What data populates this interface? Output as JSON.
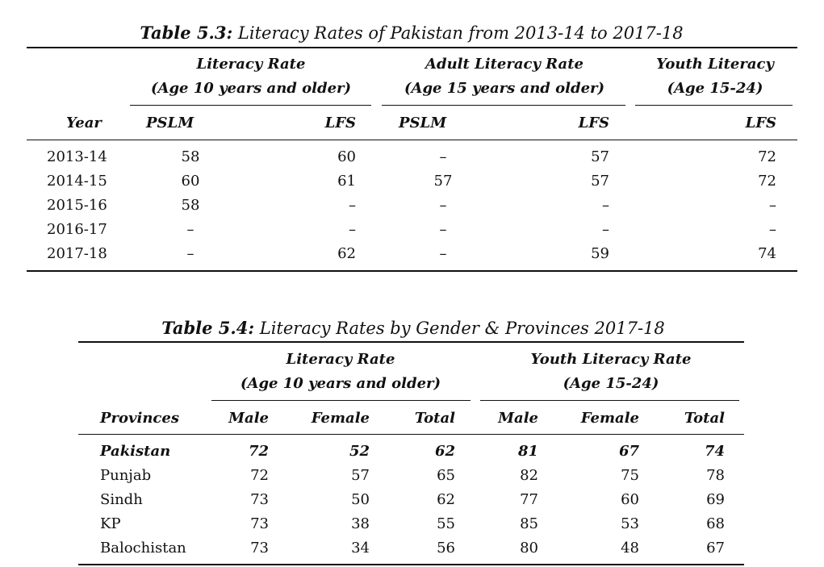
{
  "table1": {
    "caption_label": "Table 5.3:",
    "caption_text": "Literacy Rates of Pakistan from 2013-14 to 2017-18",
    "group1_line1": "Literacy Rate",
    "group1_line2": "(Age 10 years and older)",
    "group2_line1": "Adult Literacy Rate",
    "group2_line2": "(Age 15 years and older)",
    "group3_line1": "Youth Literacy",
    "group3_line2": "(Age 15-24)",
    "col_year": "Year",
    "col_pslm_1": "PSLM",
    "col_lfs_1": "LFS",
    "col_pslm_2": "PSLM",
    "col_lfs_2": "LFS",
    "col_lfs_3": "LFS",
    "rows": [
      [
        "2013-14",
        "58",
        "60",
        "–",
        "57",
        "72"
      ],
      [
        "2014-15",
        "60",
        "61",
        "57",
        "57",
        "72"
      ],
      [
        "2015-16",
        "58",
        "–",
        "–",
        "–",
        "–"
      ],
      [
        "2016-17",
        "–",
        "–",
        "–",
        "–",
        "–"
      ],
      [
        "2017-18",
        "–",
        "62",
        "–",
        "59",
        "74"
      ]
    ]
  },
  "table2": {
    "caption_label": "Table 5.4:",
    "caption_text": "Literacy Rates by Gender & Provinces 2017-18",
    "group1_line1": "Literacy Rate",
    "group1_line2": "(Age 10 years and older)",
    "group2_line1": "Youth Literacy Rate",
    "group2_line2": "(Age 15-24)",
    "col_provinces": "Provinces",
    "col_male_1": "Male",
    "col_female_1": "Female",
    "col_total_1": "Total",
    "col_male_2": "Male",
    "col_female_2": "Female",
    "col_total_2": "Total",
    "rows": [
      [
        "Pakistan",
        "72",
        "52",
        "62",
        "81",
        "67",
        "74"
      ],
      [
        "Punjab",
        "72",
        "57",
        "65",
        "82",
        "75",
        "78"
      ],
      [
        "Sindh",
        "73",
        "50",
        "62",
        "77",
        "60",
        "69"
      ],
      [
        "KP",
        "73",
        "38",
        "55",
        "85",
        "53",
        "68"
      ],
      [
        "Balochistan",
        "73",
        "34",
        "56",
        "80",
        "48",
        "67"
      ]
    ]
  }
}
